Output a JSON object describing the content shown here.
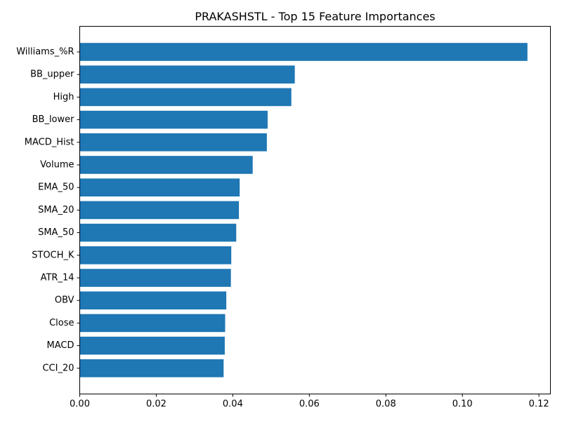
{
  "chart_data": {
    "type": "bar",
    "orientation": "horizontal",
    "title": "PRAKASHSTL - Top 15 Feature Importances",
    "xlabel": "",
    "ylabel": "",
    "categories": [
      "Williams_%R",
      "BB_upper",
      "High",
      "BB_lower",
      "MACD_Hist",
      "Volume",
      "EMA_50",
      "SMA_20",
      "SMA_50",
      "STOCH_K",
      "ATR_14",
      "OBV",
      "Close",
      "MACD",
      "CCI_20"
    ],
    "values": [
      0.117,
      0.0562,
      0.0553,
      0.0491,
      0.0489,
      0.0452,
      0.0418,
      0.0416,
      0.0409,
      0.0396,
      0.0395,
      0.0383,
      0.038,
      0.0379,
      0.0376
    ],
    "xlim": [
      0,
      0.123
    ],
    "xticks": [
      0.0,
      0.02,
      0.04,
      0.06,
      0.08,
      0.1,
      0.12
    ],
    "xtick_labels": [
      "0.00",
      "0.02",
      "0.04",
      "0.06",
      "0.08",
      "0.10",
      "0.12"
    ],
    "grid": false,
    "colors": {
      "bar": "#1f77b4",
      "axis": "#000000",
      "background": "#ffffff"
    }
  }
}
